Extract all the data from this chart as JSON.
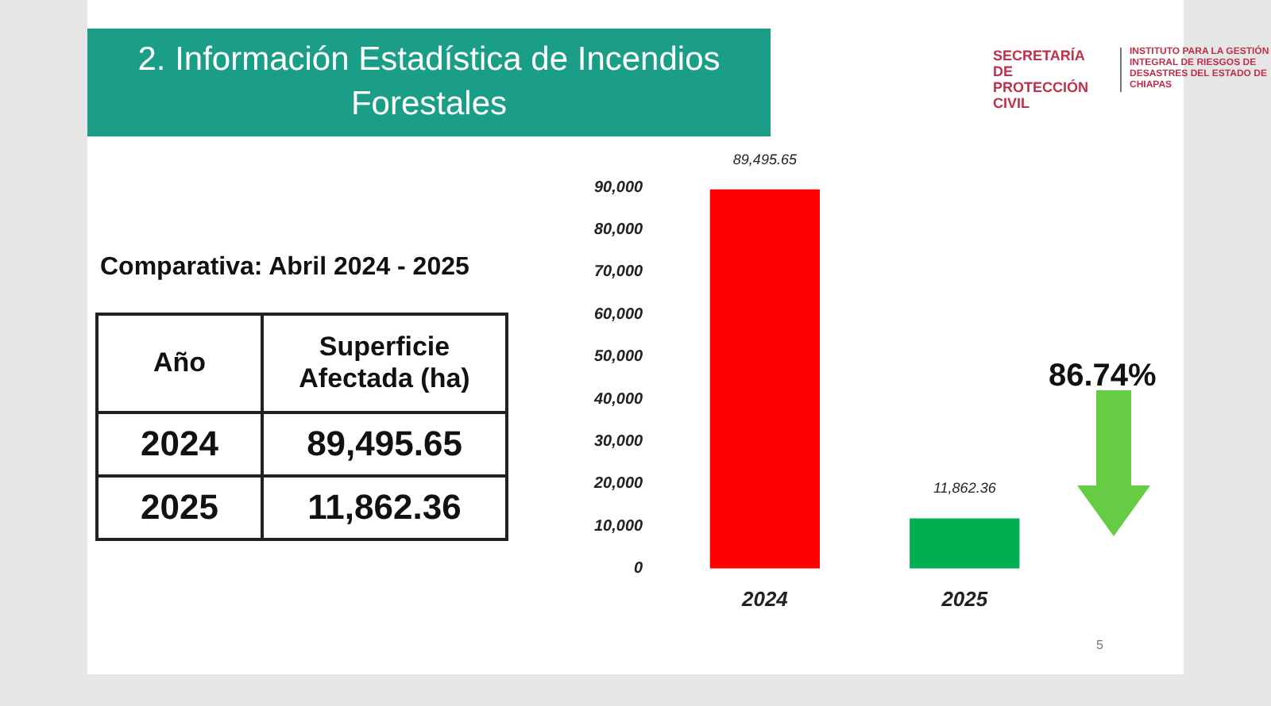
{
  "chart_data": {
    "type": "bar",
    "title": "2. Información Estadística de Incendios Forestales",
    "subtitle": "Comparativa: Abril 2024 - 2025",
    "categories": [
      "2024",
      "2025"
    ],
    "values": [
      89495.65,
      11862.36
    ],
    "colors": [
      "#ff0000",
      "#00b050"
    ],
    "ylim": [
      0,
      90000
    ],
    "yticks": [
      0,
      {
        "value": 10000,
        "label": "10,000"
      },
      {
        "value": 20000,
        "label": "20,000"
      },
      {
        "value": 30000,
        "label": "30,000"
      },
      {
        "value": 40000,
        "label": "40,000"
      },
      {
        "value": 50000,
        "label": "50,000"
      },
      {
        "value": 60000,
        "label": "60,000"
      },
      {
        "value": 70000,
        "label": "70,000"
      },
      {
        "value": 80000,
        "label": "80,000"
      },
      {
        "value": 90000,
        "label": "90,000"
      }
    ],
    "value_labels": [
      "89,495.65",
      "11,862.36"
    ],
    "grid": false,
    "legend": false,
    "annotations": [
      "Año",
      "Superficie Afectada (ha)",
      "86.74%",
      "SECRETARÍA DE PROTECCIÓN CIVIL",
      "INSTITUTO PARA LA GESTIÓN INTEGRAL DE RIESGOS DE DESASTRES DEL ESTADO DE CHIAPAS",
      "5"
    ]
  }
}
